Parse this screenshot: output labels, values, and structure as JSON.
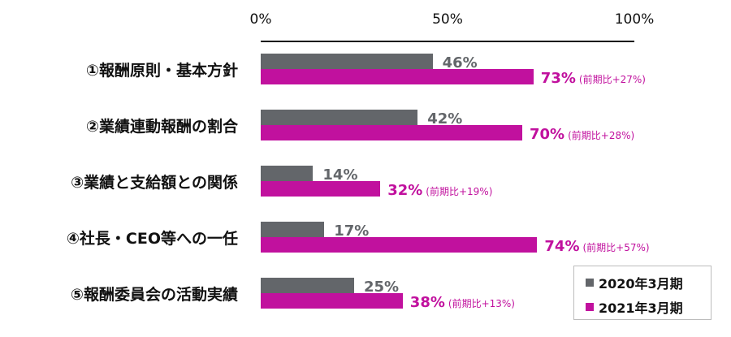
{
  "chart_data": {
    "type": "bar",
    "orientation": "horizontal",
    "title": "",
    "xlabel": "",
    "ylabel": "",
    "xlim": [
      0,
      100
    ],
    "x_ticks": [
      "0%",
      "50%",
      "100%"
    ],
    "grid": false,
    "legend_position": "bottom-right",
    "categories": [
      "①報酬原則・基本方針",
      "②業績連動報酬の割合",
      "③業績と支給額との関係",
      "④社長・CEO等への一任",
      "⑤報酬委員会の活動実績"
    ],
    "series": [
      {
        "name": "2020年3月期",
        "color": "#63666a",
        "values": [
          46,
          42,
          14,
          17,
          25
        ]
      },
      {
        "name": "2021年3月期",
        "color": "#c1119e",
        "values": [
          73,
          70,
          32,
          74,
          38
        ]
      }
    ],
    "annotations": [
      "(前期比+27%)",
      "(前期比+28%)",
      "(前期比+19%)",
      "(前期比+57%)",
      "(前期比+13%)"
    ]
  },
  "axis": {
    "ticks": [
      "0%",
      "50%",
      "100%"
    ]
  },
  "rows": [
    {
      "label": "①報酬原則・基本方針",
      "prev": "46%",
      "curr": "73%",
      "delta": "(前期比+27%)"
    },
    {
      "label": "②業績連動報酬の割合",
      "prev": "42%",
      "curr": "70%",
      "delta": "(前期比+28%)"
    },
    {
      "label": "③業績と支給額との関係",
      "prev": "14%",
      "curr": "32%",
      "delta": "(前期比+19%)"
    },
    {
      "label": "④社長・CEO等への一任",
      "prev": "17%",
      "curr": "74%",
      "delta": "(前期比+57%)"
    },
    {
      "label": "⑤報酬委員会の活動実績",
      "prev": "25%",
      "curr": "38%",
      "delta": "(前期比+13%)"
    }
  ],
  "legend": {
    "items": [
      {
        "label": "2020年3月期",
        "color": "#63666a"
      },
      {
        "label": "2021年3月期",
        "color": "#c1119e"
      }
    ]
  }
}
